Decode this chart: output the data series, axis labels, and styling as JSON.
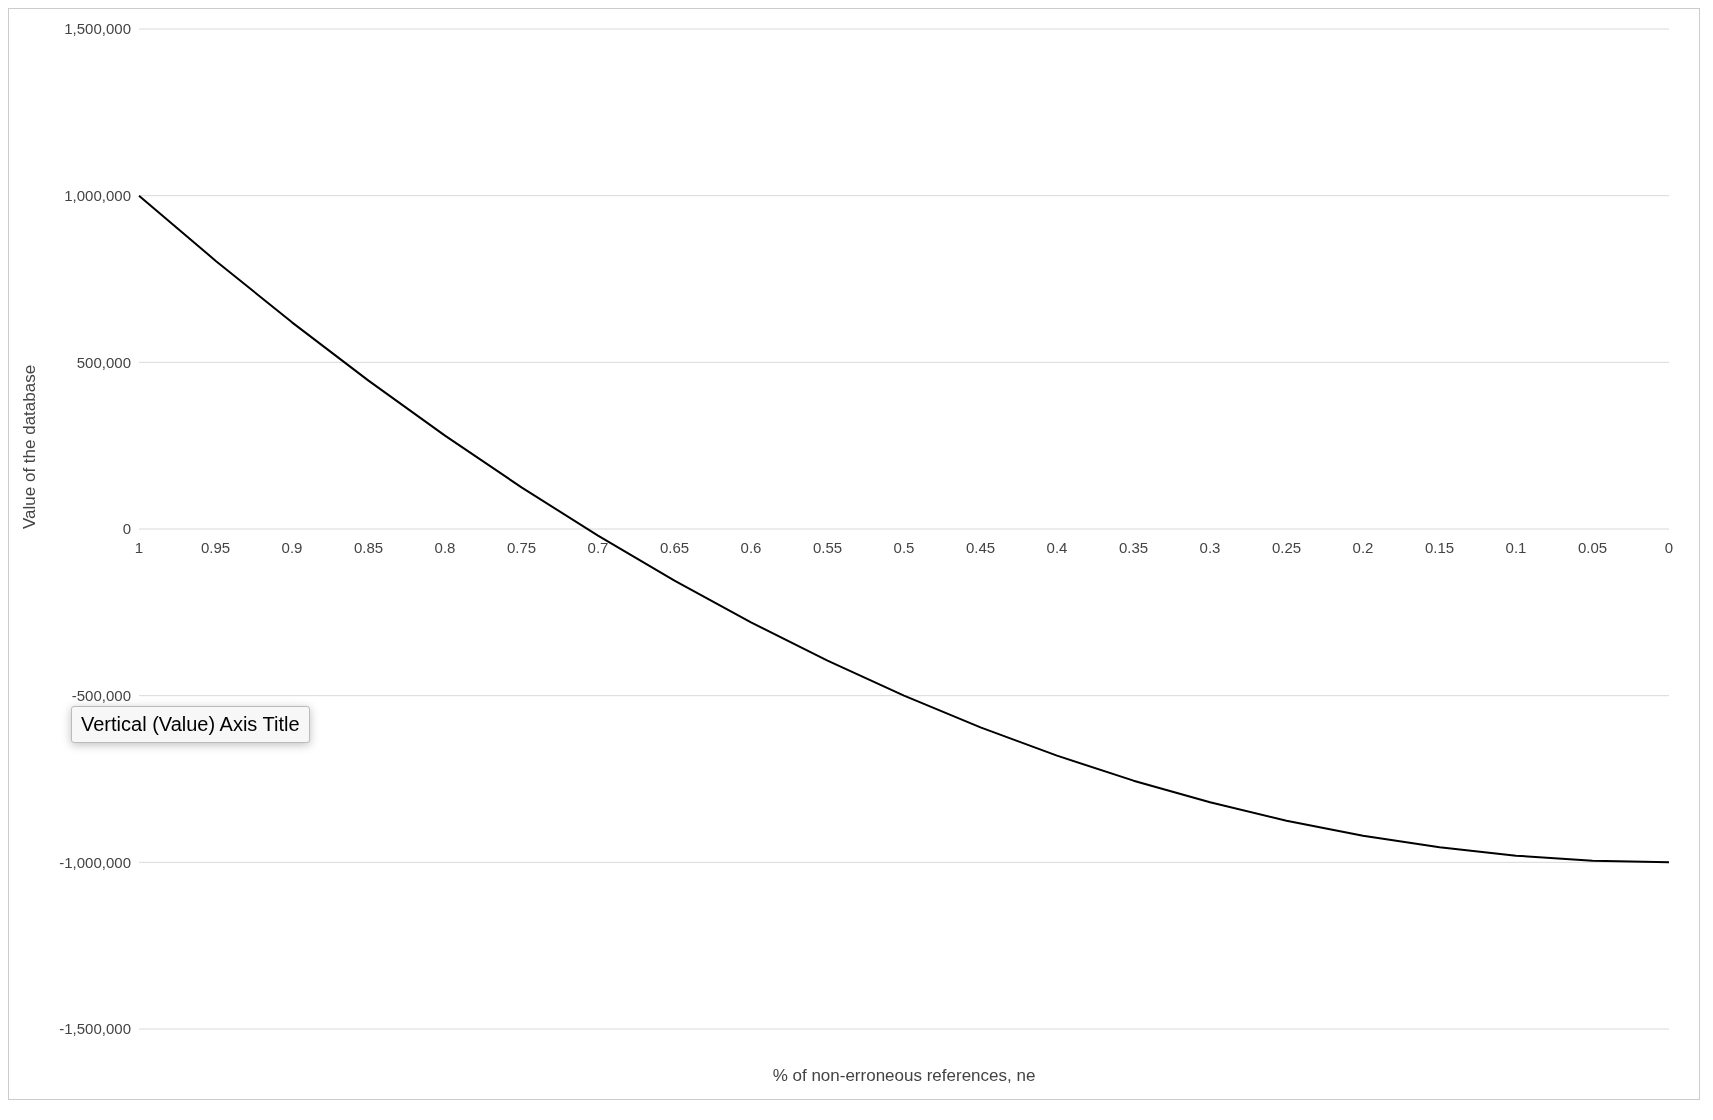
{
  "chart_data": {
    "type": "line",
    "xlabel": "% of non-erroneous references, ne",
    "ylabel": "Value of the database",
    "categories": [
      "1",
      "0.95",
      "0.9",
      "0.85",
      "0.8",
      "0.75",
      "0.7",
      "0.65",
      "0.6",
      "0.55",
      "0.5",
      "0.45",
      "0.4",
      "0.35",
      "0.3",
      "0.25",
      "0.2",
      "0.15",
      "0.1",
      "0.05",
      "0"
    ],
    "series": [
      {
        "color": "#000000",
        "values": [
          1000000,
          805000,
          620000,
          445000,
          280000,
          125000,
          -20000,
          -155000,
          -280000,
          -395000,
          -500000,
          -595000,
          -680000,
          -755000,
          -820000,
          -875000,
          -920000,
          -955000,
          -980000,
          -995000,
          -1000000
        ]
      }
    ],
    "ylim": [
      -1500000,
      1500000
    ],
    "yticks": [
      {
        "value": -1500000,
        "label": "-1,500,000"
      },
      {
        "value": -1000000,
        "label": "-1,000,000"
      },
      {
        "value": -500000,
        "label": "-500,000"
      },
      0,
      {
        "value": 500000,
        "label": "500,000"
      },
      {
        "value": 1000000,
        "label": "1,000,000"
      },
      {
        "value": 1500000,
        "label": "1,500,000"
      }
    ],
    "grid": "y",
    "marker": "none",
    "line_style": "solid",
    "annotations": [
      "Vertical (Value) Axis Title"
    ]
  }
}
